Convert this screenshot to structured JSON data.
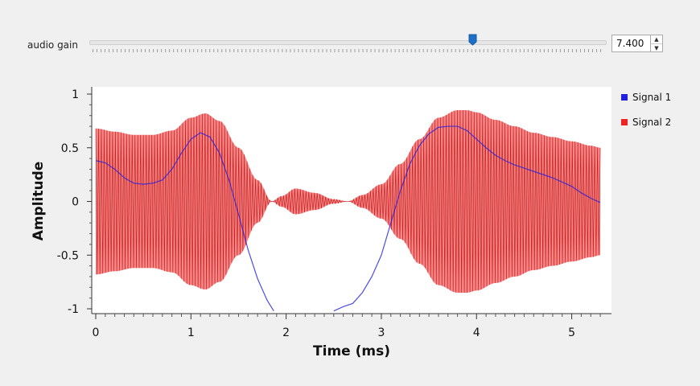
{
  "gain": {
    "label": "audio gain",
    "value": 7.4,
    "value_text": "7.400",
    "min": 0,
    "max": 12.5,
    "accent": "#1e6fc8"
  },
  "chart_data": {
    "type": "line",
    "xlabel": "Time (ms)",
    "ylabel": "Amplitude",
    "xlim": [
      0,
      5.35
    ],
    "ylim": [
      -1,
      1
    ],
    "x_ticks": [
      "0",
      "1",
      "2",
      "3",
      "4",
      "5"
    ],
    "y_ticks": [
      "1",
      "0.5",
      "0",
      "-0.5",
      "-1"
    ],
    "legend_position": "right",
    "series": [
      {
        "name": "Signal 1",
        "color": "#2020e0",
        "x": [
          0,
          0.1,
          0.2,
          0.3,
          0.4,
          0.5,
          0.6,
          0.7,
          0.8,
          0.9,
          1.0,
          1.1,
          1.2,
          1.3,
          1.4,
          1.5,
          1.6,
          1.7,
          1.8,
          1.87,
          2.5,
          2.6,
          2.7,
          2.8,
          2.9,
          3.0,
          3.1,
          3.2,
          3.3,
          3.4,
          3.5,
          3.6,
          3.7,
          3.8,
          3.9,
          4.0,
          4.1,
          4.2,
          4.3,
          4.4,
          4.5,
          4.6,
          4.7,
          4.8,
          4.9,
          5.0,
          5.1,
          5.2,
          5.3
        ],
        "y": [
          0.38,
          0.36,
          0.3,
          0.22,
          0.17,
          0.16,
          0.17,
          0.2,
          0.3,
          0.45,
          0.58,
          0.64,
          0.6,
          0.45,
          0.2,
          -0.12,
          -0.45,
          -0.72,
          -0.92,
          -1.02,
          -1.02,
          -0.98,
          -0.95,
          -0.85,
          -0.7,
          -0.5,
          -0.2,
          0.1,
          0.35,
          0.52,
          0.63,
          0.69,
          0.7,
          0.7,
          0.66,
          0.58,
          0.5,
          0.43,
          0.38,
          0.34,
          0.31,
          0.28,
          0.25,
          0.22,
          0.18,
          0.14,
          0.08,
          0.03,
          -0.01
        ]
      },
      {
        "name": "Signal 2",
        "color": "#ee2222",
        "kind": "oscillating envelope",
        "cycles": 180,
        "envelope_x": [
          0,
          0.2,
          0.4,
          0.6,
          0.8,
          1.0,
          1.15,
          1.3,
          1.5,
          1.7,
          1.85,
          1.95,
          2.1,
          2.3,
          2.5,
          2.65,
          2.8,
          3.0,
          3.2,
          3.4,
          3.6,
          3.8,
          3.9,
          4.0,
          4.2,
          4.4,
          4.6,
          4.8,
          5.0,
          5.2,
          5.3
        ],
        "envelope_y": [
          0.68,
          0.65,
          0.62,
          0.62,
          0.66,
          0.78,
          0.82,
          0.75,
          0.5,
          0.2,
          0.0,
          0.05,
          0.12,
          0.08,
          0.02,
          0.0,
          0.06,
          0.16,
          0.35,
          0.58,
          0.78,
          0.85,
          0.85,
          0.83,
          0.76,
          0.7,
          0.64,
          0.6,
          0.56,
          0.52,
          0.5
        ]
      }
    ]
  }
}
